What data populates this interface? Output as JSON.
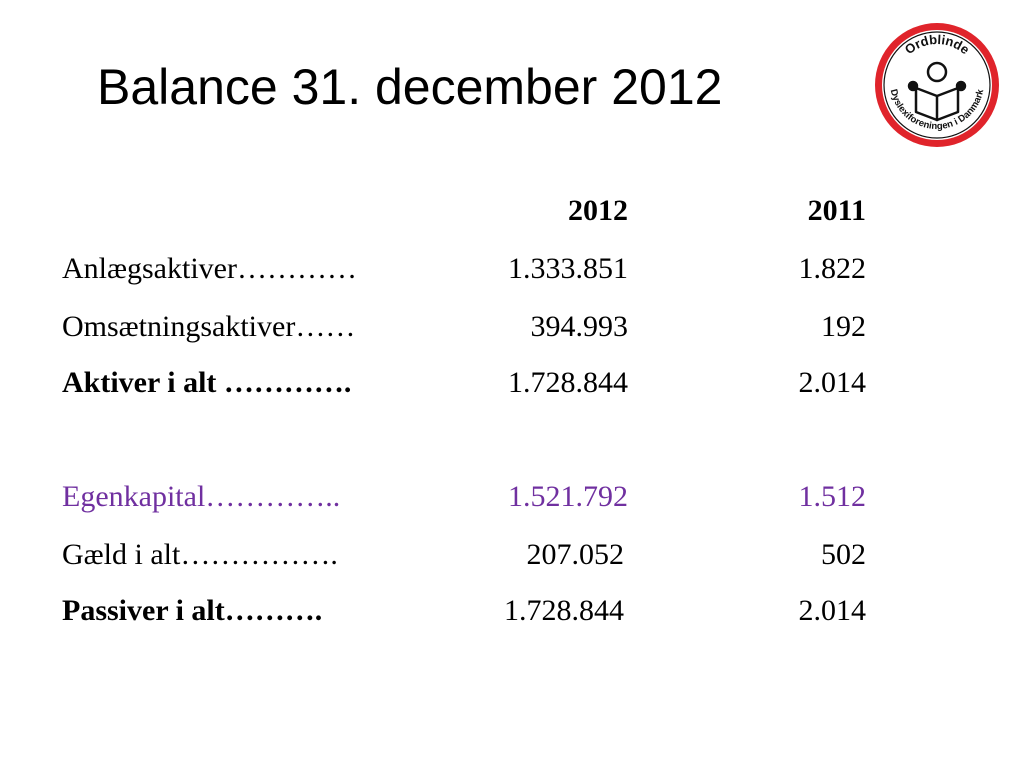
{
  "title": "Balance 31. december 2012",
  "logo": {
    "top_text": "Ordblinde",
    "ring_text": "Dyslexiforeningen i Danmark",
    "accent_color": "#e0242b"
  },
  "columns": {
    "y2012": "2012",
    "y2011": "2011"
  },
  "rows": [
    {
      "label": "Anlægsaktiver…………",
      "v2012": "1.333.851",
      "v2011": "1.822"
    },
    {
      "label": "Omsætningsaktiver……",
      "v2012": "394.993",
      "v2011": "192"
    },
    {
      "label": "Aktiver i alt ………….",
      "v2012": "1.728.844",
      "v2011": "2.014"
    },
    {
      "label": "Egenkapital…………..",
      "v2012": "1.521.792",
      "v2011": "1.512"
    },
    {
      "label": "Gæld i alt…………….",
      "v2012": "207.052",
      "v2011": "502"
    },
    {
      "label": "Passiver i alt……….",
      "v2012": "1.728.844",
      "v2011": "2.014"
    }
  ],
  "colors": {
    "highlight": "#7030a0"
  }
}
